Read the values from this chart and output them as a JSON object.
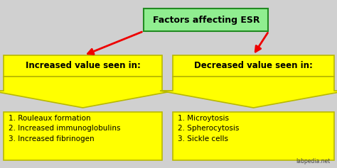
{
  "bg_color": "#d0d0d0",
  "title_text": "Factors affecting ESR",
  "title_box_color": "#90ee90",
  "title_box_edge": "#228B22",
  "left_header": "Increased value seen in:",
  "right_header": "Decreased value seen in:",
  "header_box_color": "#ffff00",
  "header_box_edge": "#b8b800",
  "left_items": "1. Rouleaux formation\n2. Increased immunoglobulins\n3. Increased fibrinogen",
  "right_items": "1. Microytosis\n2. Spherocytosis\n3. Sickle cells",
  "item_box_color": "#ffff00",
  "item_box_edge": "#b8b800",
  "arrow_color_red": "#ee0000",
  "watermark": "labpedia.net"
}
